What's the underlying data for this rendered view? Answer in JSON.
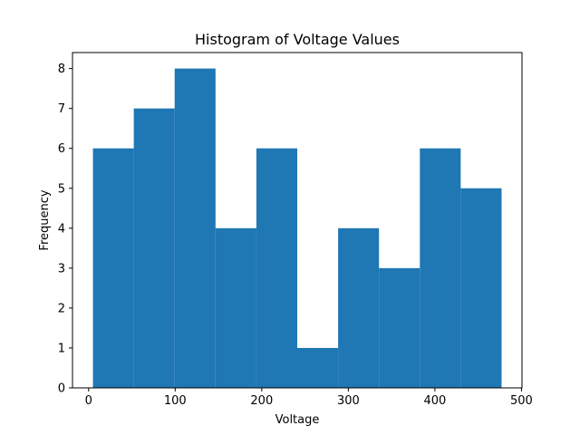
{
  "chart_data": {
    "type": "bar",
    "title": "Histogram of Voltage Values",
    "xlabel": "Voltage",
    "ylabel": "Frequency",
    "bar_color": "#1f77b4",
    "bin_edges": [
      5,
      52.2,
      99.4,
      146.6,
      193.8,
      241,
      288.2,
      335.4,
      382.6,
      429.8,
      477
    ],
    "values": [
      6,
      7,
      8,
      4,
      6,
      1,
      4,
      3,
      6,
      5
    ],
    "xlim": [
      -18.6,
      500.6
    ],
    "ylim": [
      0,
      8.4
    ],
    "xticks": [
      0,
      100,
      200,
      300,
      400,
      500
    ],
    "xtick_labels": [
      "0",
      "100",
      "200",
      "300",
      "400",
      "500"
    ],
    "yticks": [
      0,
      1,
      2,
      3,
      4,
      5,
      6,
      7,
      8
    ],
    "ytick_labels": [
      "0",
      "1",
      "2",
      "3",
      "4",
      "5",
      "6",
      "7",
      "8"
    ],
    "grid": false,
    "legend": "none"
  }
}
